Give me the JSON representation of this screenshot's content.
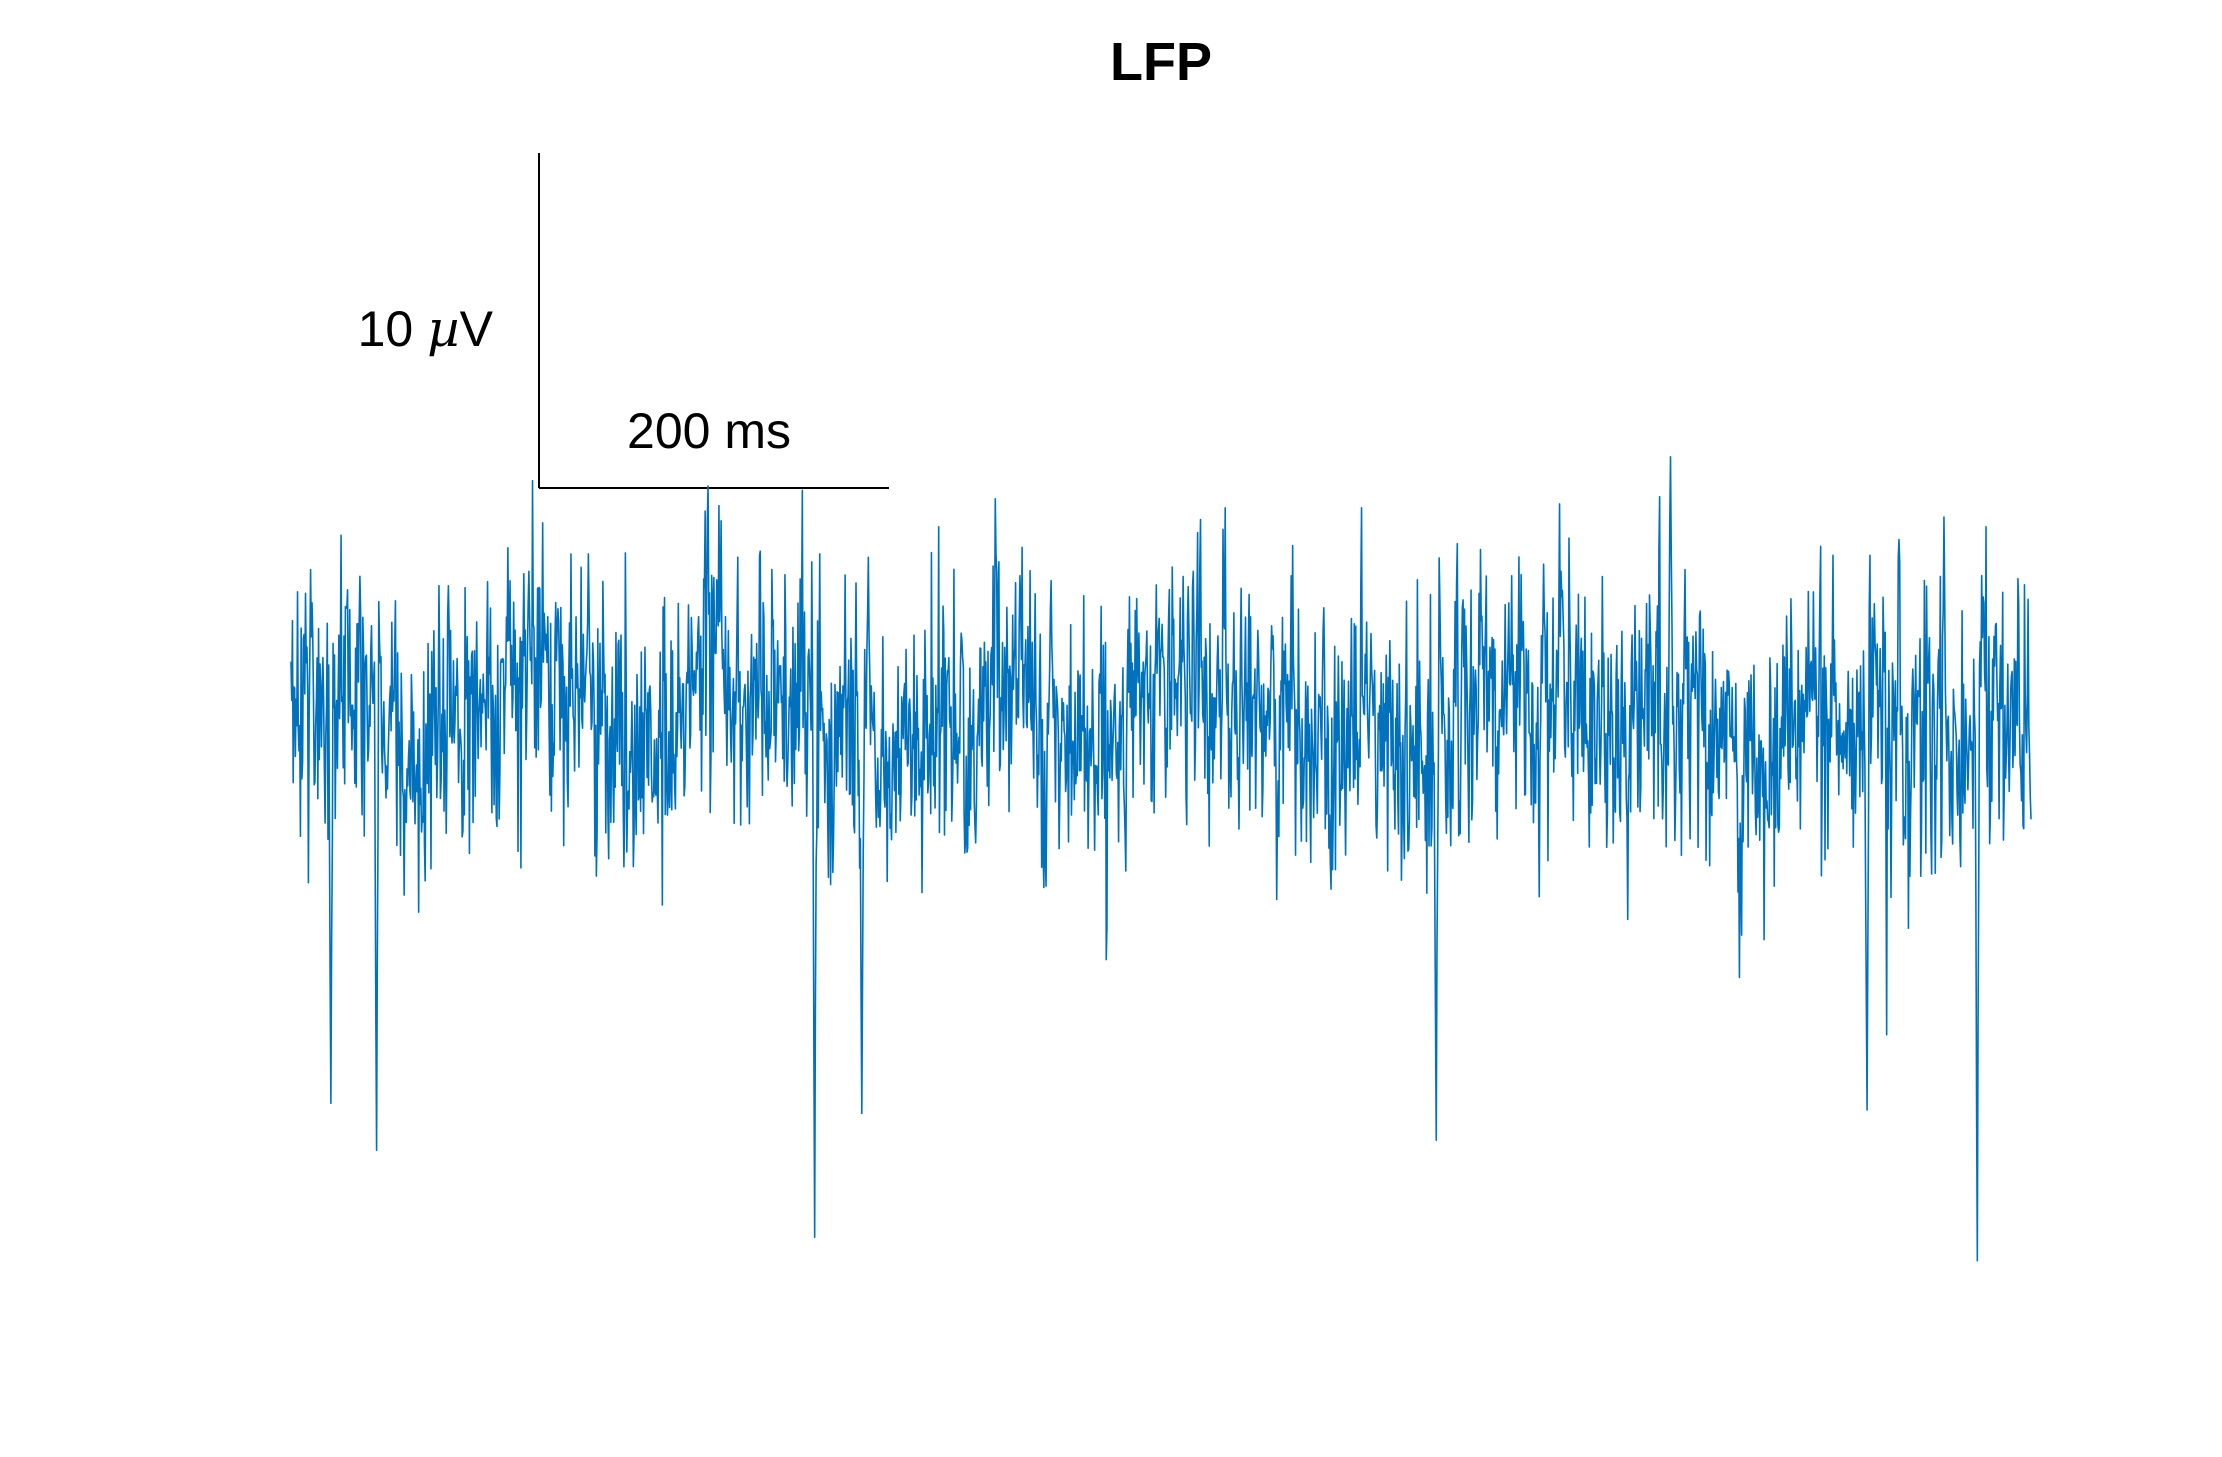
{
  "chart_data": {
    "type": "line",
    "title": "LFP",
    "xlabel": "",
    "ylabel": "",
    "axes_visible": false,
    "grid": false,
    "legend": false,
    "color": "#0072BD",
    "scale_bar": {
      "time": {
        "value": 200,
        "unit": "ms",
        "label": "200 ms"
      },
      "voltage": {
        "value": 10,
        "unit": "µV",
        "label_number": "10 ",
        "label_mu": "µ",
        "label_unit": "V"
      }
    },
    "xlim": [
      0,
      1000
    ],
    "ylim": [
      -19,
      16
    ],
    "series": [
      {
        "name": "",
        "sample_count": 2400,
        "baseline": -0.3,
        "std": 3.0,
        "envelope_min": -16.5,
        "envelope_max": 7.5,
        "notable_peaks": [
          {
            "t": 793,
            "v": 7.5
          },
          {
            "t": 950,
            "v": 5.7
          },
          {
            "t": 171,
            "v": 4.6
          },
          {
            "t": 332,
            "v": 4.5
          },
          {
            "t": 437,
            "v": 3.8
          }
        ],
        "notable_troughs": [
          {
            "t": 969,
            "v": -16.5
          },
          {
            "t": 301,
            "v": -15.8
          },
          {
            "t": 49,
            "v": -13.2
          },
          {
            "t": 658,
            "v": -12.9
          },
          {
            "t": 328,
            "v": -12.1
          },
          {
            "t": 906,
            "v": -12.0
          },
          {
            "t": 23,
            "v": -11.8
          }
        ]
      }
    ]
  }
}
